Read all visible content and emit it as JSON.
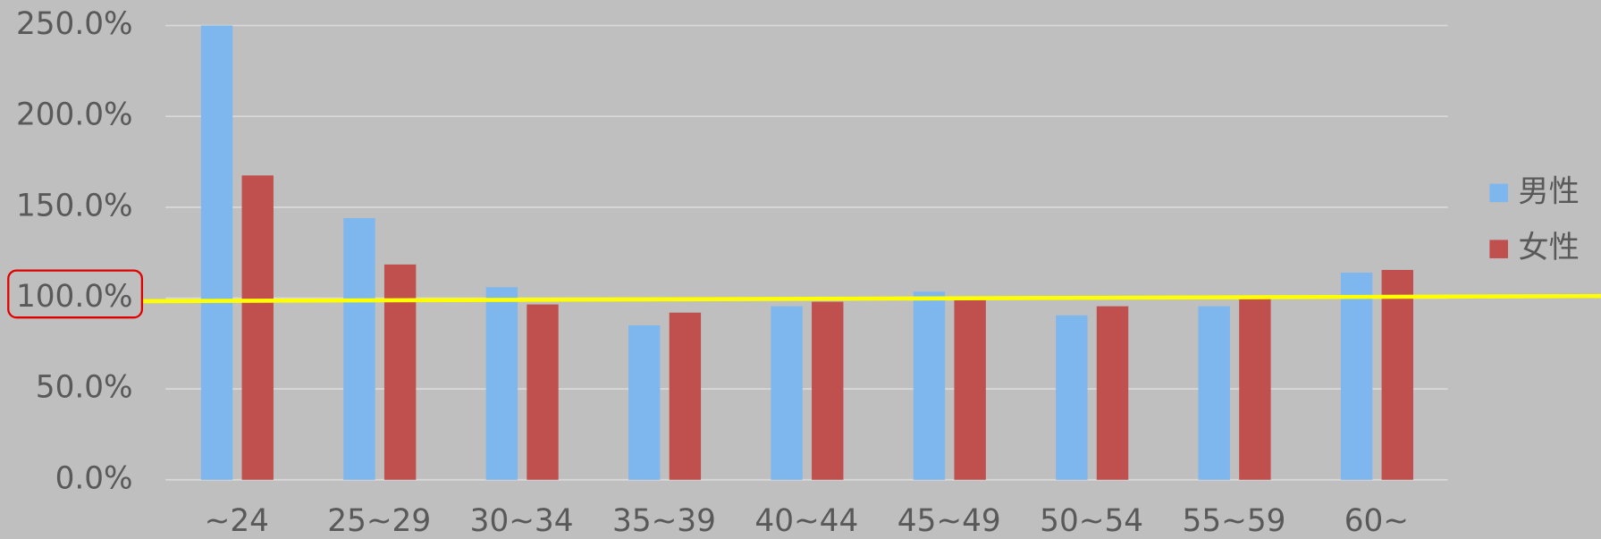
{
  "chart_data": {
    "type": "bar",
    "categories": [
      "~24",
      "25~29",
      "30~34",
      "35~39",
      "40~44",
      "45~49",
      "50~54",
      "55~59",
      "60~"
    ],
    "series": [
      {
        "name": "男性",
        "color": "#7eb6ee",
        "values": [
          250,
          144,
          106,
          85,
          95.5,
          103.5,
          90.5,
          95.5,
          114
        ]
      },
      {
        "name": "女性",
        "color": "#c0504d",
        "values": [
          167.5,
          118.5,
          96.5,
          92,
          98,
          99.5,
          95.5,
          99.5,
          115.5
        ]
      }
    ],
    "ylim": [
      0,
      250
    ],
    "yticks": [
      {
        "value": 0,
        "label": "0.0%"
      },
      {
        "value": 50,
        "label": "50.0%"
      },
      {
        "value": 100,
        "label": "100.0%"
      },
      {
        "value": 150,
        "label": "150.0%"
      },
      {
        "value": 200,
        "label": "200.0%"
      },
      {
        "value": 250,
        "label": "250.0%"
      }
    ],
    "grid": true,
    "legend": "right"
  }
}
